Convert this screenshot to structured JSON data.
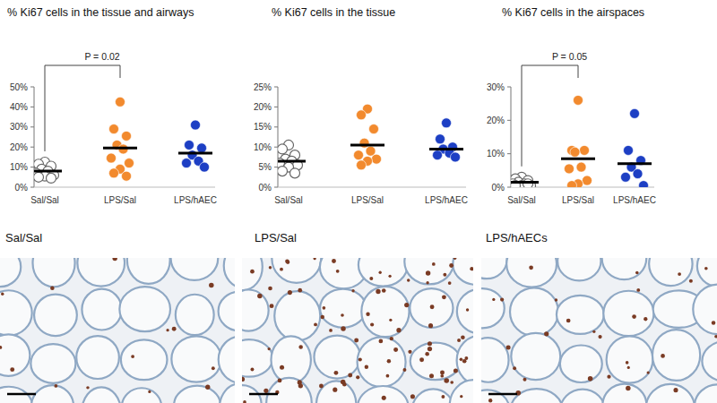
{
  "chart_data": [
    {
      "type": "scatter",
      "title": "% Ki67 cells in the tissue and airways",
      "categories": [
        "Sal/Sal",
        "LPS/Sal",
        "LPS/hAEC"
      ],
      "colors": [
        "#ffffff",
        "#f28a2e",
        "#1d3fc4"
      ],
      "marker": "circle",
      "values": [
        [
          12.5,
          11.5,
          10.5,
          9,
          8,
          7,
          6,
          5.5,
          5,
          4.5
        ],
        [
          42.5,
          29,
          25.5,
          21,
          19,
          14.5,
          12,
          9,
          7,
          5.5
        ],
        [
          31,
          21,
          19.5,
          16,
          13,
          12,
          10
        ]
      ],
      "means": [
        8,
        19.5,
        17
      ],
      "ylim": [
        0,
        50
      ],
      "yticks": [
        {
          "value": 0,
          "label": "0%"
        },
        {
          "value": 10,
          "label": "10%"
        },
        {
          "value": 20,
          "label": "20%"
        },
        {
          "value": 30,
          "label": "30%"
        },
        {
          "value": 40,
          "label": "40%"
        },
        {
          "value": 50,
          "label": "50%"
        }
      ],
      "grid": false,
      "annotations": [
        {
          "text": "P = 0.02",
          "between": [
            "Sal/Sal",
            "LPS/Sal"
          ]
        }
      ]
    },
    {
      "type": "scatter",
      "title": "% Ki67 cells in the tissue",
      "categories": [
        "Sal/Sal",
        "LPS/Sal",
        "LPS/hAEC"
      ],
      "colors": [
        "#ffffff",
        "#f28a2e",
        "#1d3fc4"
      ],
      "marker": "circle",
      "values": [
        [
          10.5,
          9.5,
          8,
          7,
          6.5,
          6,
          5.5,
          5,
          4,
          3.5
        ],
        [
          19.5,
          18,
          14.5,
          11,
          9,
          8,
          7,
          6.5,
          5.5
        ],
        [
          16,
          12,
          10,
          9.5,
          8.5,
          8,
          7.5
        ]
      ],
      "means": [
        6.5,
        10.5,
        9.5
      ],
      "ylim": [
        0,
        25
      ],
      "yticks": [
        {
          "value": 0,
          "label": "0%"
        },
        {
          "value": 5,
          "label": "5%"
        },
        {
          "value": 10,
          "label": "10%"
        },
        {
          "value": 15,
          "label": "15%"
        },
        {
          "value": 20,
          "label": "20%"
        },
        {
          "value": 25,
          "label": "25%"
        }
      ],
      "grid": false
    },
    {
      "type": "scatter",
      "title": "% Ki67 cells in the airspaces",
      "categories": [
        "Sal/Sal",
        "LPS/Sal",
        "LPS/hAEC"
      ],
      "colors": [
        "#ffffff",
        "#f28a2e",
        "#1d3fc4"
      ],
      "marker": "circle",
      "values": [
        [
          3,
          2.5,
          2,
          1.5,
          1,
          1,
          0.5,
          0.5,
          0.5,
          1
        ],
        [
          26,
          11,
          11,
          10.5,
          6,
          5.5,
          2,
          1,
          0.5
        ],
        [
          22,
          11,
          8,
          6,
          4,
          3,
          0.5
        ]
      ],
      "means": [
        1.5,
        8.5,
        7
      ],
      "ylim": [
        0,
        30
      ],
      "yticks": [
        {
          "value": 0,
          "label": "0%"
        },
        {
          "value": 10,
          "label": "10%"
        },
        {
          "value": 20,
          "label": "20%"
        },
        {
          "value": 30,
          "label": "30%"
        }
      ],
      "grid": false,
      "annotations": [
        {
          "text": "P = 0.05",
          "between": [
            "Sal/Sal",
            "LPS/Sal"
          ]
        }
      ]
    }
  ],
  "micrographs": [
    {
      "label": "Sal/Sal"
    },
    {
      "label": "LPS/Sal"
    },
    {
      "label": "LPS/hAECs"
    }
  ]
}
